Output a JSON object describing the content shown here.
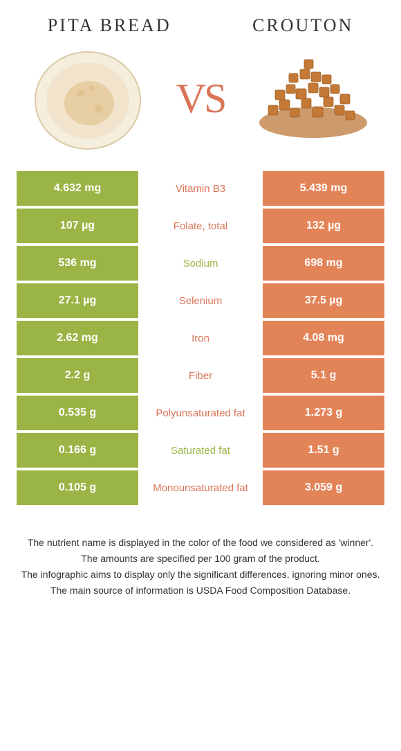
{
  "header": {
    "left_title": "PITA BREAD",
    "right_title": "CROUTON",
    "vs": "VS"
  },
  "colors": {
    "left_col": "#9ab545",
    "right_col": "#e38458",
    "winner_left": "#9ab545",
    "winner_right": "#da7457"
  },
  "rows": [
    {
      "left": "4.632 mg",
      "label": "Vitamin B3",
      "right": "5.439 mg",
      "winner": "right"
    },
    {
      "left": "107 µg",
      "label": "Folate, total",
      "right": "132 µg",
      "winner": "right"
    },
    {
      "left": "536 mg",
      "label": "Sodium",
      "right": "698 mg",
      "winner": "left"
    },
    {
      "left": "27.1 µg",
      "label": "Selenium",
      "right": "37.5 µg",
      "winner": "right"
    },
    {
      "left": "2.62 mg",
      "label": "Iron",
      "right": "4.08 mg",
      "winner": "right"
    },
    {
      "left": "2.2 g",
      "label": "Fiber",
      "right": "5.1 g",
      "winner": "right"
    },
    {
      "left": "0.535 g",
      "label": "Polyunsaturated fat",
      "right": "1.273 g",
      "winner": "right"
    },
    {
      "left": "0.166 g",
      "label": "Saturated fat",
      "right": "1.51 g",
      "winner": "left"
    },
    {
      "left": "0.105 g",
      "label": "Monounsaturated fat",
      "right": "3.059 g",
      "winner": "right"
    }
  ],
  "footer": {
    "line1": "The nutrient name is displayed in the color of the food we considered as 'winner'.",
    "line2": "The amounts are specified per 100 gram of the product.",
    "line3": "The infographic aims to display only the significant differences, ignoring minor ones.",
    "line4": "The main source of information is USDA Food Composition Database."
  }
}
